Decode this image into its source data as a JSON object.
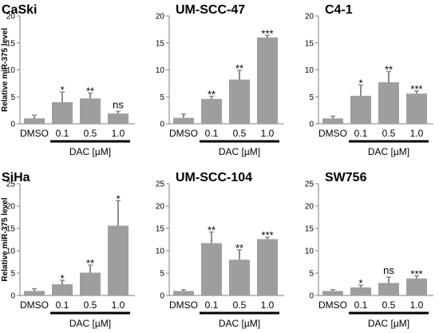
{
  "chart_data": [
    {
      "type": "bar",
      "title": "CaSki",
      "ylabel": "Relative miR-375 level",
      "xlabel": "DAC [µM]",
      "categories": [
        "DMSO",
        "0.1",
        "0.5",
        "1.0"
      ],
      "values": [
        1.0,
        4.0,
        4.7,
        1.9
      ],
      "errors": [
        0.6,
        1.9,
        1.0,
        0.4
      ],
      "significance": [
        "",
        "*",
        "**",
        "ns"
      ],
      "ylim": [
        0,
        20
      ],
      "yticks": [
        0,
        5,
        10,
        15,
        20
      ],
      "bar_color": "#9e9e9e"
    },
    {
      "type": "bar",
      "title": "UM-SCC-47",
      "xlabel": "DAC [µM]",
      "categories": [
        "DMSO",
        "0.1",
        "0.5",
        "1.0"
      ],
      "values": [
        1.1,
        4.6,
        8.2,
        16.0
      ],
      "errors": [
        0.7,
        0.5,
        1.7,
        0.4
      ],
      "significance": [
        "",
        "**",
        "**",
        "***"
      ],
      "ylim": [
        0,
        20
      ],
      "yticks": [
        0,
        5,
        10,
        15,
        20
      ],
      "bar_color": "#9e9e9e"
    },
    {
      "type": "bar",
      "title": "C4-1",
      "xlabel": "DAC [µM]",
      "categories": [
        "DMSO",
        "0.1",
        "0.5",
        "1.0"
      ],
      "values": [
        1.0,
        5.2,
        7.7,
        5.6
      ],
      "errors": [
        0.4,
        2.0,
        2.0,
        0.5
      ],
      "significance": [
        "",
        "*",
        "**",
        "***"
      ],
      "ylim": [
        0,
        20
      ],
      "yticks": [
        0,
        5,
        10,
        15,
        20
      ],
      "bar_color": "#9e9e9e"
    },
    {
      "type": "bar",
      "title": "SiHa",
      "ylabel": "Relative miR-375 level",
      "xlabel": "DAC [µM]",
      "categories": [
        "DMSO",
        "0.1",
        "0.5",
        "1.0"
      ],
      "values": [
        1.0,
        2.5,
        5.1,
        15.6
      ],
      "errors": [
        0.5,
        0.9,
        1.7,
        5.6
      ],
      "significance": [
        "",
        "*",
        "**",
        "*"
      ],
      "ylim": [
        0,
        25
      ],
      "yticks": [
        0,
        5,
        10,
        15,
        20,
        25
      ],
      "bar_color": "#9e9e9e"
    },
    {
      "type": "bar",
      "title": "UM-SCC-104",
      "xlabel": "DAC [µM]",
      "categories": [
        "DMSO",
        "0.1",
        "0.5",
        "1.0"
      ],
      "values": [
        1.0,
        11.7,
        8.0,
        12.6
      ],
      "errors": [
        0.3,
        2.5,
        2.2,
        0.4
      ],
      "significance": [
        "",
        "**",
        "**",
        "***"
      ],
      "ylim": [
        0,
        25
      ],
      "yticks": [
        0,
        5,
        10,
        15,
        20,
        25
      ],
      "bar_color": "#9e9e9e"
    },
    {
      "type": "bar",
      "title": "SW756",
      "xlabel": "DAC [µM]",
      "categories": [
        "DMSO",
        "0.1",
        "0.5",
        "1.0"
      ],
      "values": [
        1.0,
        1.8,
        2.8,
        3.8
      ],
      "errors": [
        0.3,
        0.5,
        1.3,
        0.6
      ],
      "significance": [
        "",
        "*",
        "ns",
        "***"
      ],
      "ylim": [
        0,
        25
      ],
      "yticks": [
        0,
        5,
        10,
        15,
        20,
        25
      ],
      "bar_color": "#9e9e9e"
    }
  ]
}
